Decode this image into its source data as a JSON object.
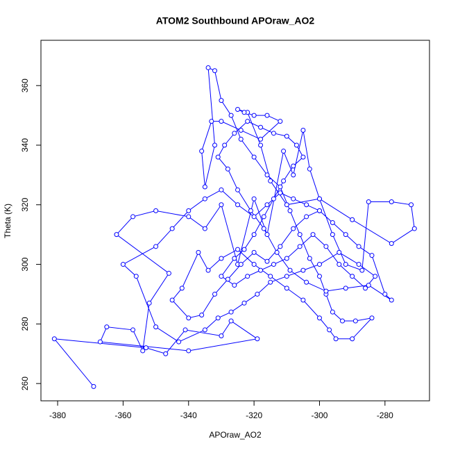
{
  "chart_data": {
    "type": "scatter",
    "lines": true,
    "color": "#0000ff",
    "title": "ATOM2 Southbound APOraw_AO2",
    "x_label": "APOraw_AO2",
    "y_label": "Theta (K)",
    "xlim": [
      -385.1,
      -266.4
    ],
    "ylim": [
      254.2,
      375.2
    ],
    "xticks": [
      -380,
      -360,
      -340,
      -320,
      -300,
      -280
    ],
    "yticks": [
      260,
      280,
      300,
      320,
      340,
      360
    ],
    "x": [
      -369,
      -381,
      -353,
      -347,
      -341,
      -330,
      -327,
      -319,
      -340,
      -367,
      -365,
      -357,
      -354,
      -352,
      -346,
      -362,
      -357,
      -350,
      -340,
      -335,
      -330,
      -325,
      -320,
      -316,
      -311,
      -308,
      -305,
      -303,
      -300,
      -296,
      -292,
      -287,
      -285,
      -278,
      -272,
      -271,
      -278,
      -290,
      -300,
      -310,
      -315,
      -318,
      -322,
      -325,
      -323,
      -320,
      -316,
      -312,
      -318,
      -324,
      -330,
      -333,
      -336,
      -335,
      -332,
      -334,
      -332,
      -330,
      -327,
      -324,
      -320,
      -316,
      -312,
      -309,
      -306,
      -303,
      -300,
      -298,
      -296,
      -293,
      -289,
      -284,
      -290,
      -295,
      -297,
      -300,
      -305,
      -310,
      -315,
      -320,
      -325,
      -330,
      -334,
      -337,
      -342,
      -345,
      -340,
      -336,
      -332,
      -328,
      -324,
      -320,
      -316,
      -312,
      -308,
      -304,
      -300,
      -296,
      -292,
      -288,
      -284,
      -280,
      -278,
      -285,
      -292,
      -298,
      -304,
      -309,
      -313,
      -317,
      -321,
      -325,
      -328,
      -331,
      -329,
      -326,
      -322,
      -318,
      -314,
      -310,
      -307,
      -305,
      -308,
      -311,
      -314,
      -317,
      -320,
      -323,
      -326,
      -330,
      -326,
      -322,
      -318,
      -314,
      -310,
      -306,
      -302,
      -298,
      -294,
      -290,
      -286,
      -283,
      -288,
      -294,
      -300,
      -305,
      -310,
      -315,
      -319,
      -323,
      -327,
      -331,
      -335,
      -343,
      -350,
      -356,
      -360,
      -350,
      -345,
      -340,
      -335,
      -330,
      -325,
      -320,
      -316,
      -312,
      -308,
      -304,
      -300
    ],
    "y": [
      259,
      275,
      272,
      270,
      278,
      276,
      281,
      275,
      271,
      274,
      279,
      278,
      271,
      287,
      297,
      310,
      316,
      318,
      316,
      312,
      320,
      300,
      322,
      310,
      338,
      330,
      345,
      332,
      322,
      310,
      300,
      298,
      321,
      321,
      320,
      312,
      307,
      315,
      322,
      320,
      328,
      340,
      351,
      352,
      351,
      350,
      350,
      348,
      342,
      345,
      348,
      348,
      338,
      326,
      340,
      366,
      365,
      355,
      350,
      342,
      336,
      330,
      326,
      318,
      310,
      302,
      296,
      290,
      284,
      281,
      281,
      282,
      275,
      275,
      278,
      282,
      288,
      292,
      296,
      300,
      305,
      302,
      298,
      304,
      292,
      288,
      282,
      283,
      290,
      295,
      300,
      304,
      301,
      306,
      312,
      316,
      318,
      314,
      310,
      306,
      303,
      290,
      288,
      293,
      292,
      291,
      294,
      298,
      304,
      312,
      318,
      325,
      332,
      336,
      340,
      344,
      348,
      346,
      344,
      343,
      340,
      336,
      333,
      328,
      322,
      316,
      310,
      305,
      302,
      296,
      293,
      296,
      298,
      300,
      302,
      306,
      310,
      306,
      300,
      296,
      292,
      296,
      300,
      304,
      300,
      298,
      296,
      294,
      290,
      287,
      284,
      282,
      278,
      274,
      279,
      296,
      300,
      306,
      312,
      318,
      322,
      325,
      320,
      316,
      320,
      324,
      322,
      320,
      318
    ]
  }
}
